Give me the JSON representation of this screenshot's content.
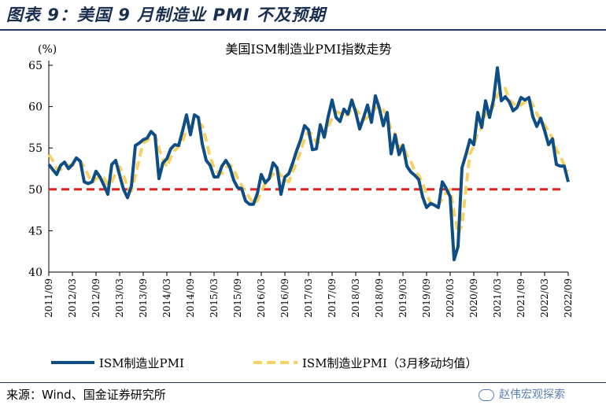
{
  "figure": {
    "title": "图表 9：美国 9 月制造业 PMI 不及预期",
    "source": "来源：Wind、国金证券研究所",
    "watermark": "赵伟宏观探索"
  },
  "colors": {
    "series1": "#0e4e84",
    "series2": "#f7d163",
    "reference": "#e8201f",
    "axis": "#000000"
  },
  "chart_data": {
    "type": "line",
    "title": "美国ISM制造业PMI指数走势",
    "ylabel": "(%)",
    "ylim": [
      40,
      65
    ],
    "yticks": [
      40,
      45,
      50,
      55,
      60,
      65
    ],
    "xlim": [
      "2011-09",
      "2022-09"
    ],
    "xticks": [
      "2011/09",
      "2012/03",
      "2012/09",
      "2013/03",
      "2013/09",
      "2014/03",
      "2014/09",
      "2015/03",
      "2015/09",
      "2016/03",
      "2016/09",
      "2017/03",
      "2017/09",
      "2018/03",
      "2018/09",
      "2019/03",
      "2019/09",
      "2020/03",
      "2020/09",
      "2021/03",
      "2021/09",
      "2022/03",
      "2022/09"
    ],
    "reference_line": {
      "y": 50,
      "style": "dashed"
    },
    "grid": false,
    "legend_position": "bottom",
    "series": [
      {
        "name": "ISM制造业PMI",
        "x": [
          "2011-09",
          "2011-10",
          "2011-11",
          "2011-12",
          "2012-01",
          "2012-02",
          "2012-03",
          "2012-04",
          "2012-05",
          "2012-06",
          "2012-07",
          "2012-08",
          "2012-09",
          "2012-10",
          "2012-11",
          "2012-12",
          "2013-01",
          "2013-02",
          "2013-03",
          "2013-04",
          "2013-05",
          "2013-06",
          "2013-07",
          "2013-08",
          "2013-09",
          "2013-10",
          "2013-11",
          "2013-12",
          "2014-01",
          "2014-02",
          "2014-03",
          "2014-04",
          "2014-05",
          "2014-06",
          "2014-07",
          "2014-08",
          "2014-09",
          "2014-10",
          "2014-11",
          "2014-12",
          "2015-01",
          "2015-02",
          "2015-03",
          "2015-04",
          "2015-05",
          "2015-06",
          "2015-07",
          "2015-08",
          "2015-09",
          "2015-10",
          "2015-11",
          "2015-12",
          "2016-01",
          "2016-02",
          "2016-03",
          "2016-04",
          "2016-05",
          "2016-06",
          "2016-07",
          "2016-08",
          "2016-09",
          "2016-10",
          "2016-11",
          "2016-12",
          "2017-01",
          "2017-02",
          "2017-03",
          "2017-04",
          "2017-05",
          "2017-06",
          "2017-07",
          "2017-08",
          "2017-09",
          "2017-10",
          "2017-11",
          "2017-12",
          "2018-01",
          "2018-02",
          "2018-03",
          "2018-04",
          "2018-05",
          "2018-06",
          "2018-07",
          "2018-08",
          "2018-09",
          "2018-10",
          "2018-11",
          "2018-12",
          "2019-01",
          "2019-02",
          "2019-03",
          "2019-04",
          "2019-05",
          "2019-06",
          "2019-07",
          "2019-08",
          "2019-09",
          "2019-10",
          "2019-11",
          "2019-12",
          "2020-01",
          "2020-02",
          "2020-03",
          "2020-04",
          "2020-05",
          "2020-06",
          "2020-07",
          "2020-08",
          "2020-09",
          "2020-10",
          "2020-11",
          "2020-12",
          "2021-01",
          "2021-02",
          "2021-03",
          "2021-04",
          "2021-05",
          "2021-06",
          "2021-07",
          "2021-08",
          "2021-09",
          "2021-10",
          "2021-11",
          "2021-12",
          "2022-01",
          "2022-02",
          "2022-03",
          "2022-04",
          "2022-05",
          "2022-06",
          "2022-07",
          "2022-08",
          "2022-09"
        ],
        "values": [
          53.0,
          52.4,
          51.8,
          52.9,
          53.3,
          52.5,
          53.0,
          53.8,
          53.4,
          50.9,
          50.7,
          50.9,
          52.2,
          51.5,
          50.5,
          49.4,
          53.0,
          53.5,
          51.7,
          50.0,
          49.0,
          50.4,
          55.3,
          55.6,
          56.0,
          56.2,
          57.0,
          56.5,
          51.3,
          53.2,
          53.7,
          54.9,
          55.4,
          55.3,
          57.1,
          59.0,
          56.6,
          59.0,
          58.7,
          55.5,
          53.5,
          52.9,
          51.5,
          51.5,
          52.8,
          53.5,
          52.7,
          51.1,
          50.2,
          50.1,
          48.6,
          48.2,
          48.2,
          49.5,
          51.8,
          50.8,
          51.3,
          53.2,
          52.6,
          49.4,
          51.5,
          51.9,
          53.2,
          54.7,
          56.0,
          57.7,
          57.2,
          54.8,
          54.9,
          57.8,
          56.3,
          58.8,
          60.8,
          58.7,
          58.2,
          59.7,
          59.1,
          60.8,
          59.3,
          57.3,
          58.7,
          60.2,
          58.1,
          61.3,
          59.8,
          57.7,
          59.3,
          54.3,
          56.6,
          54.2,
          55.3,
          52.8,
          52.1,
          51.7,
          51.2,
          49.1,
          47.8,
          48.3,
          48.1,
          47.8,
          50.9,
          50.1,
          49.1,
          41.5,
          43.1,
          52.6,
          54.2,
          56.0,
          55.4,
          59.3,
          57.5,
          60.7,
          58.7,
          60.8,
          64.7,
          60.7,
          61.2,
          60.6,
          59.5,
          59.9,
          61.1,
          60.8,
          61.1,
          58.8,
          57.6,
          58.6,
          57.1,
          55.4,
          56.1,
          53.0,
          52.8,
          52.8,
          50.9
        ]
      },
      {
        "name": "ISM制造业PMI（3月移动均值）",
        "x": [
          "2011-09",
          "2011-10",
          "2011-11",
          "2011-12",
          "2012-01",
          "2012-02",
          "2012-03",
          "2012-04",
          "2012-05",
          "2012-06",
          "2012-07",
          "2012-08",
          "2012-09",
          "2012-10",
          "2012-11",
          "2012-12",
          "2013-01",
          "2013-02",
          "2013-03",
          "2013-04",
          "2013-05",
          "2013-06",
          "2013-07",
          "2013-08",
          "2013-09",
          "2013-10",
          "2013-11",
          "2013-12",
          "2014-01",
          "2014-02",
          "2014-03",
          "2014-04",
          "2014-05",
          "2014-06",
          "2014-07",
          "2014-08",
          "2014-09",
          "2014-10",
          "2014-11",
          "2014-12",
          "2015-01",
          "2015-02",
          "2015-03",
          "2015-04",
          "2015-05",
          "2015-06",
          "2015-07",
          "2015-08",
          "2015-09",
          "2015-10",
          "2015-11",
          "2015-12",
          "2016-01",
          "2016-02",
          "2016-03",
          "2016-04",
          "2016-05",
          "2016-06",
          "2016-07",
          "2016-08",
          "2016-09",
          "2016-10",
          "2016-11",
          "2016-12",
          "2017-01",
          "2017-02",
          "2017-03",
          "2017-04",
          "2017-05",
          "2017-06",
          "2017-07",
          "2017-08",
          "2017-09",
          "2017-10",
          "2017-11",
          "2017-12",
          "2018-01",
          "2018-02",
          "2018-03",
          "2018-04",
          "2018-05",
          "2018-06",
          "2018-07",
          "2018-08",
          "2018-09",
          "2018-10",
          "2018-11",
          "2018-12",
          "2019-01",
          "2019-02",
          "2019-03",
          "2019-04",
          "2019-05",
          "2019-06",
          "2019-07",
          "2019-08",
          "2019-09",
          "2019-10",
          "2019-11",
          "2019-12",
          "2020-01",
          "2020-02",
          "2020-03",
          "2020-04",
          "2020-05",
          "2020-06",
          "2020-07",
          "2020-08",
          "2020-09",
          "2020-10",
          "2020-11",
          "2020-12",
          "2021-01",
          "2021-02",
          "2021-03",
          "2021-04",
          "2021-05",
          "2021-06",
          "2021-07",
          "2021-08",
          "2021-09",
          "2021-10",
          "2021-11",
          "2021-12",
          "2022-01",
          "2022-02",
          "2022-03",
          "2022-04",
          "2022-05",
          "2022-06",
          "2022-07",
          "2022-08",
          "2022-09"
        ],
        "values": [
          54.2,
          53.5,
          52.5,
          52.4,
          52.7,
          52.9,
          52.9,
          53.1,
          53.4,
          52.7,
          51.7,
          50.8,
          51.3,
          51.5,
          51.4,
          50.5,
          50.9,
          52.0,
          52.7,
          51.7,
          50.2,
          49.8,
          51.6,
          53.8,
          55.6,
          55.9,
          56.4,
          56.6,
          54.9,
          53.7,
          52.7,
          53.9,
          54.7,
          55.2,
          55.9,
          57.1,
          57.6,
          58.2,
          58.1,
          57.7,
          55.9,
          53.9,
          52.6,
          52.0,
          51.9,
          52.6,
          53.0,
          52.4,
          51.3,
          50.5,
          49.6,
          49.0,
          48.3,
          48.6,
          49.8,
          50.7,
          51.3,
          51.8,
          52.4,
          51.7,
          51.2,
          50.9,
          52.2,
          53.3,
          54.6,
          56.1,
          57.0,
          56.6,
          55.6,
          55.8,
          56.3,
          57.6,
          58.6,
          59.4,
          59.2,
          58.9,
          59.0,
          59.9,
          59.7,
          59.1,
          58.4,
          58.7,
          59.0,
          59.9,
          59.7,
          59.6,
          58.9,
          57.1,
          56.7,
          55.0,
          55.4,
          54.1,
          53.4,
          52.2,
          51.7,
          50.7,
          49.4,
          48.4,
          48.1,
          48.1,
          48.9,
          49.6,
          50.0,
          47.2,
          44.6,
          45.7,
          50.0,
          54.3,
          55.2,
          56.9,
          57.4,
          59.2,
          59.0,
          60.1,
          61.4,
          62.1,
          62.2,
          60.8,
          60.4,
          60.0,
          60.2,
          60.6,
          61.0,
          60.2,
          59.2,
          58.3,
          57.8,
          57.0,
          56.2,
          54.8,
          54.0,
          52.9,
          52.2
        ]
      }
    ]
  }
}
